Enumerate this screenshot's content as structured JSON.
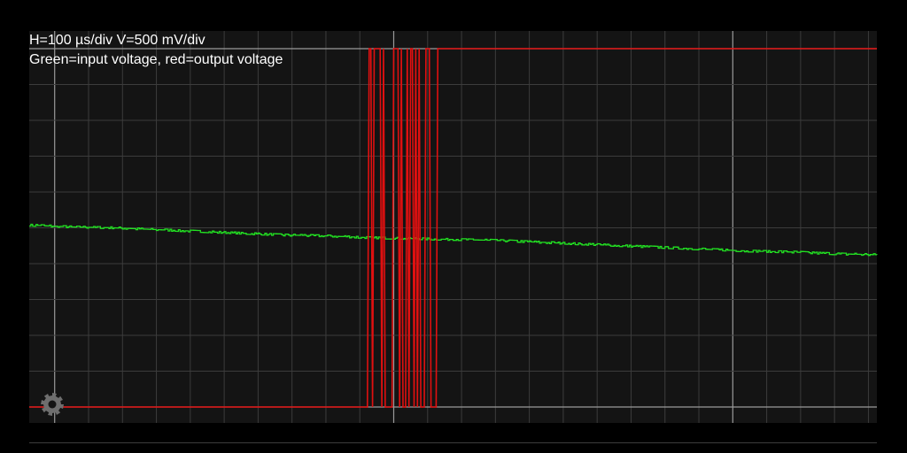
{
  "header": {
    "line1": "H=100 µs/div V=500 mV/div",
    "line2": "Green=input voltage, red=output voltage"
  },
  "colors": {
    "background": "#000000",
    "plot_background": "#141414",
    "grid_minor": "#3c3c3c",
    "grid_major": "#9a9a9a",
    "input_trace": "#22e022",
    "output_trace": "#e01010",
    "gear": "#6e6e6e"
  },
  "icons": {
    "settings": "gear-icon"
  },
  "chart_data": {
    "type": "line",
    "title": "",
    "xlabel": "",
    "ylabel": "",
    "h_per_div": "100 µs/div",
    "v_per_div": "500 mV/div",
    "xlim": [
      0,
      1000
    ],
    "ylim": [
      -1000,
      1000
    ],
    "major_x": [
      30,
      430,
      830
    ],
    "major_y": [
      1000,
      -1000
    ],
    "grid": true,
    "series": [
      {
        "name": "input voltage",
        "color": "#22e022",
        "x": [
          0,
          50,
          100,
          150,
          200,
          250,
          300,
          350,
          400,
          450,
          500,
          550,
          600,
          650,
          700,
          750,
          800,
          850,
          900,
          950,
          1000
        ],
        "y": [
          15,
          5,
          0,
          -10,
          -20,
          -30,
          -40,
          -45,
          -55,
          -60,
          -65,
          -70,
          -80,
          -90,
          -100,
          -110,
          -120,
          -130,
          -135,
          -145,
          -150
        ]
      },
      {
        "name": "output voltage",
        "color": "#e01010",
        "low": -1000,
        "high": 1000,
        "x": [
          0,
          399,
          401,
          403,
          405,
          407,
          414,
          416,
          418,
          420,
          428,
          430,
          435,
          437,
          439,
          441,
          444,
          446,
          448,
          450,
          452,
          454,
          456,
          458,
          460,
          462,
          466,
          468,
          472,
          474,
          480,
          482,
          1000
        ],
        "y": [
          -1000,
          -1000,
          1000,
          1000,
          -1000,
          1000,
          1000,
          -1000,
          1000,
          -1000,
          -1000,
          1000,
          1000,
          -1000,
          1000,
          -1000,
          -1000,
          1000,
          -1000,
          1000,
          1000,
          -1000,
          1000,
          -1000,
          1000,
          -1000,
          -1000,
          1000,
          1000,
          -1000,
          -1000,
          1000,
          1000
        ]
      }
    ]
  }
}
